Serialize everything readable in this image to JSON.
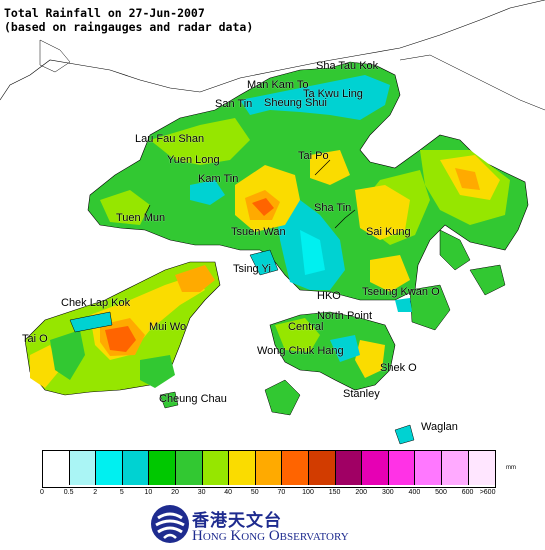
{
  "title_lines": [
    "Total Rainfall on 27-Jun-2007",
    "(based on raingauges and radar data)"
  ],
  "places": [
    {
      "label": "Sha Tau Kok"
    },
    {
      "label": "Man Kam To"
    },
    {
      "label": "Ta Kwu Ling"
    },
    {
      "label": "San Tin"
    },
    {
      "label": "Sheung Shui"
    },
    {
      "label": "Lau Fau Shan"
    },
    {
      "label": "Yuen Long"
    },
    {
      "label": "Tai Po"
    },
    {
      "label": "Kam Tin"
    },
    {
      "label": "Sha Tin"
    },
    {
      "label": "Tuen Mun"
    },
    {
      "label": "Tsuen Wan"
    },
    {
      "label": "Sai Kung"
    },
    {
      "label": "Tsing Yi"
    },
    {
      "label": "Chek Lap Kok"
    },
    {
      "label": "HKO"
    },
    {
      "label": "Tseung Kwan O"
    },
    {
      "label": "North Point"
    },
    {
      "label": "Central"
    },
    {
      "label": "Mui Wo"
    },
    {
      "label": "Tai O"
    },
    {
      "label": "Wong Chuk Hang"
    },
    {
      "label": "Shek O"
    },
    {
      "label": "Stanley"
    },
    {
      "label": "Cheung Chau"
    },
    {
      "label": "Waglan"
    }
  ],
  "legend": {
    "unit": "mm",
    "colors": [
      "#ffffff",
      "#aaf5f5",
      "#00f0f0",
      "#00d2d2",
      "#00c800",
      "#32c832",
      "#96e600",
      "#fadc00",
      "#ffaa00",
      "#ff6400",
      "#d23c00",
      "#a00064",
      "#e600b4",
      "#ff32e6",
      "#ff78ff",
      "#ffaaff",
      "#ffe6ff"
    ],
    "ticks": [
      "0",
      "0.5",
      "2",
      "5",
      "10",
      "20",
      "30",
      "40",
      "50",
      "70",
      "100",
      "150",
      "200",
      "300",
      "400",
      "500",
      "600",
      ">600"
    ]
  },
  "logo": {
    "chinese": "香港天文台",
    "english": "Hong Kong Observatory"
  }
}
